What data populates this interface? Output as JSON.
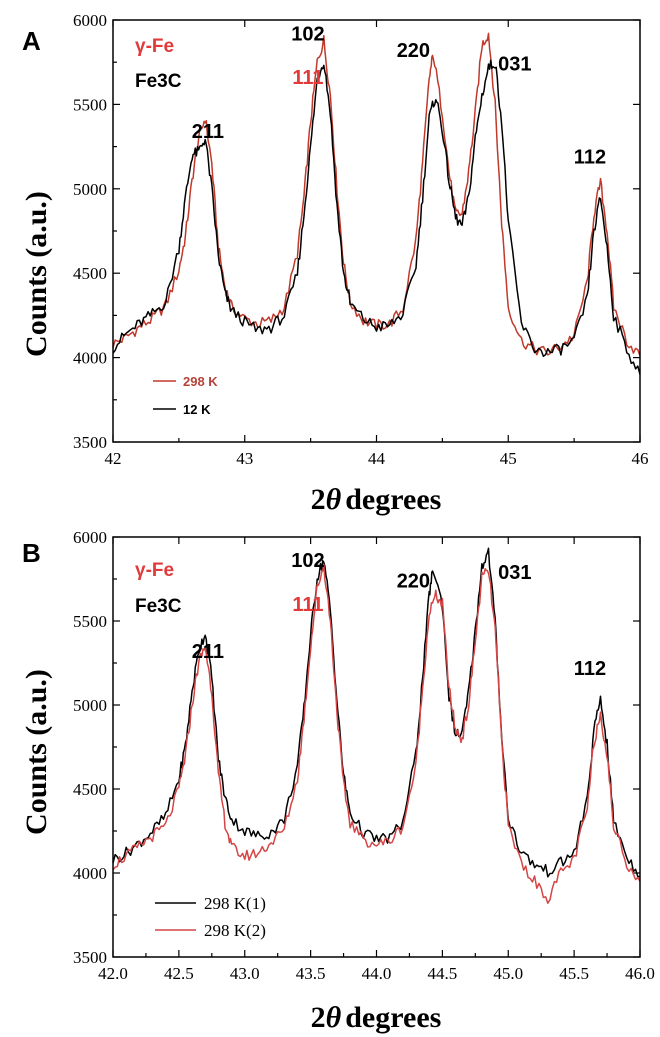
{
  "chart_data": [
    {
      "panel": "A",
      "type": "line",
      "xlabel_prefix": "2",
      "xlabel_symbol": "θ",
      "xlabel_suffix": "degrees",
      "ylabel": "Counts (a.u.)",
      "xlim": [
        42,
        46
      ],
      "ylim": [
        3500,
        6000
      ],
      "xticks": [
        42,
        43,
        44,
        45,
        46
      ],
      "xtick_labels": [
        "42",
        "43",
        "44",
        "45",
        "46"
      ],
      "yticks": [
        3500,
        4000,
        4500,
        5000,
        5500,
        6000
      ],
      "ytick_labels": [
        "3500",
        "4000",
        "4500",
        "5000",
        "5500",
        "6000"
      ],
      "grid": false,
      "legend_position": "lower-left",
      "phase_labels": [
        "γ-Fe",
        "Fe3C"
      ],
      "peak_labels": [
        {
          "text": "211",
          "x": 42.72,
          "y": 5300,
          "phase": "Fe3C"
        },
        {
          "text": "102",
          "x": 43.48,
          "y": 5880,
          "phase": "Fe3C"
        },
        {
          "text": "111",
          "x": 43.48,
          "y": 5620,
          "phase": "γ-Fe"
        },
        {
          "text": "220",
          "x": 44.28,
          "y": 5780,
          "phase": "Fe3C"
        },
        {
          "text": "031",
          "x": 45.05,
          "y": 5700,
          "phase": "Fe3C"
        },
        {
          "text": "112",
          "x": 45.62,
          "y": 5150,
          "phase": "Fe3C"
        }
      ],
      "series": [
        {
          "name": "298 K",
          "color": "#c0392b",
          "x": [
            42.0,
            42.1,
            42.2,
            42.3,
            42.4,
            42.5,
            42.55,
            42.6,
            42.65,
            42.7,
            42.75,
            42.8,
            42.85,
            42.9,
            43.0,
            43.1,
            43.2,
            43.3,
            43.4,
            43.45,
            43.5,
            43.55,
            43.6,
            43.65,
            43.7,
            43.75,
            43.8,
            43.9,
            44.0,
            44.1,
            44.2,
            44.3,
            44.35,
            44.4,
            44.43,
            44.5,
            44.55,
            44.6,
            44.65,
            44.7,
            44.75,
            44.8,
            44.85,
            44.9,
            44.95,
            45.0,
            45.1,
            45.2,
            45.3,
            45.4,
            45.5,
            45.6,
            45.65,
            45.7,
            45.75,
            45.8,
            45.9,
            46.0
          ],
          "y": [
            4080,
            4120,
            4180,
            4230,
            4310,
            4520,
            4720,
            5050,
            5300,
            5420,
            5150,
            4650,
            4420,
            4300,
            4230,
            4200,
            4220,
            4300,
            4620,
            4950,
            5400,
            5750,
            5880,
            5550,
            5000,
            4560,
            4330,
            4220,
            4190,
            4200,
            4290,
            4700,
            5150,
            5650,
            5800,
            5450,
            5100,
            4850,
            4850,
            5100,
            5450,
            5850,
            5920,
            5500,
            4800,
            4300,
            4100,
            4050,
            4030,
            4070,
            4130,
            4450,
            4850,
            5040,
            4750,
            4300,
            4100,
            4010
          ]
        },
        {
          "name": "12 K",
          "color": "#000000",
          "x": [
            42.0,
            42.1,
            42.2,
            42.3,
            42.4,
            42.5,
            42.55,
            42.6,
            42.65,
            42.7,
            42.75,
            42.8,
            42.85,
            42.9,
            43.0,
            43.1,
            43.2,
            43.3,
            43.4,
            43.45,
            43.5,
            43.55,
            43.6,
            43.65,
            43.7,
            43.75,
            43.8,
            43.9,
            44.0,
            44.1,
            44.2,
            44.3,
            44.35,
            44.4,
            44.45,
            44.5,
            44.55,
            44.6,
            44.65,
            44.7,
            44.75,
            44.8,
            44.85,
            44.9,
            44.95,
            45.0,
            45.1,
            45.2,
            45.3,
            45.4,
            45.5,
            45.6,
            45.65,
            45.7,
            45.75,
            45.8,
            45.9,
            46.0
          ],
          "y": [
            4060,
            4140,
            4200,
            4260,
            4330,
            4650,
            4950,
            5200,
            5220,
            5300,
            5000,
            4600,
            4380,
            4280,
            4210,
            4160,
            4180,
            4250,
            4500,
            4850,
            5250,
            5650,
            5760,
            5450,
            4900,
            4500,
            4320,
            4230,
            4180,
            4190,
            4260,
            4550,
            4950,
            5420,
            5550,
            5350,
            5050,
            4830,
            4780,
            4950,
            5300,
            5550,
            5720,
            5750,
            5400,
            4800,
            4200,
            4050,
            4030,
            4050,
            4100,
            4350,
            4750,
            4950,
            4650,
            4250,
            4050,
            3900
          ]
        }
      ]
    },
    {
      "panel": "B",
      "type": "line",
      "xlabel_prefix": "2",
      "xlabel_symbol": "θ",
      "xlabel_suffix": "degrees",
      "ylabel": "Counts (a.u.)",
      "xlim": [
        42.0,
        46.0
      ],
      "ylim": [
        3500,
        6000
      ],
      "xticks": [
        42.0,
        42.5,
        43.0,
        43.5,
        44.0,
        44.5,
        45.0,
        45.5,
        46.0
      ],
      "xtick_labels": [
        "42.0",
        "42.5",
        "43.0",
        "43.5",
        "44.0",
        "44.5",
        "45.0",
        "45.5",
        "46.0"
      ],
      "yticks": [
        3500,
        4000,
        4500,
        5000,
        5500,
        6000
      ],
      "ytick_labels": [
        "3500",
        "4000",
        "4500",
        "5000",
        "5500",
        "6000"
      ],
      "grid": false,
      "legend_position": "lower-left",
      "phase_labels": [
        "γ-Fe",
        "Fe3C"
      ],
      "peak_labels": [
        {
          "text": "211",
          "x": 42.72,
          "y": 5280,
          "phase": "Fe3C"
        },
        {
          "text": "102",
          "x": 43.48,
          "y": 5820,
          "phase": "Fe3C"
        },
        {
          "text": "111",
          "x": 43.48,
          "y": 5560,
          "phase": "γ-Fe"
        },
        {
          "text": "220",
          "x": 44.28,
          "y": 5700,
          "phase": "Fe3C"
        },
        {
          "text": "031",
          "x": 45.05,
          "y": 5750,
          "phase": "Fe3C"
        },
        {
          "text": "112",
          "x": 45.62,
          "y": 5180,
          "phase": "Fe3C"
        }
      ],
      "series": [
        {
          "name": "298 K(1)",
          "color": "#000000",
          "x": [
            42.0,
            42.1,
            42.2,
            42.3,
            42.4,
            42.5,
            42.55,
            42.6,
            42.65,
            42.7,
            42.75,
            42.8,
            42.85,
            42.9,
            43.0,
            43.1,
            43.2,
            43.3,
            43.4,
            43.45,
            43.5,
            43.55,
            43.6,
            43.65,
            43.7,
            43.75,
            43.8,
            43.9,
            44.0,
            44.1,
            44.2,
            44.3,
            44.35,
            44.4,
            44.43,
            44.5,
            44.55,
            44.6,
            44.65,
            44.7,
            44.75,
            44.8,
            44.85,
            44.9,
            44.95,
            45.0,
            45.1,
            45.2,
            45.3,
            45.4,
            45.5,
            45.6,
            45.65,
            45.7,
            45.75,
            45.8,
            45.9,
            46.0
          ],
          "y": [
            4080,
            4120,
            4180,
            4250,
            4340,
            4560,
            4760,
            5080,
            5320,
            5430,
            5160,
            4680,
            4450,
            4320,
            4250,
            4220,
            4240,
            4320,
            4640,
            4980,
            5420,
            5760,
            5870,
            5560,
            5020,
            4580,
            4360,
            4240,
            4200,
            4210,
            4300,
            4710,
            5160,
            5660,
            5810,
            5600,
            5050,
            4820,
            4830,
            5080,
            5440,
            5830,
            5910,
            5500,
            4820,
            4330,
            4120,
            4050,
            4010,
            4060,
            4120,
            4440,
            4840,
            5040,
            4760,
            4310,
            4100,
            3980
          ]
        },
        {
          "name": "298 K(2)",
          "color": "#d64545",
          "x": [
            42.0,
            42.1,
            42.2,
            42.3,
            42.4,
            42.5,
            42.55,
            42.6,
            42.65,
            42.7,
            42.75,
            42.8,
            42.85,
            42.9,
            43.0,
            43.1,
            43.2,
            43.3,
            43.4,
            43.45,
            43.5,
            43.55,
            43.6,
            43.65,
            43.7,
            43.75,
            43.8,
            43.9,
            44.0,
            44.1,
            44.2,
            44.3,
            44.35,
            44.4,
            44.45,
            44.5,
            44.55,
            44.6,
            44.65,
            44.7,
            44.75,
            44.8,
            44.85,
            44.9,
            44.95,
            45.0,
            45.1,
            45.2,
            45.3,
            45.4,
            45.5,
            45.6,
            45.65,
            45.7,
            45.75,
            45.8,
            45.9,
            46.0
          ],
          "y": [
            4050,
            4100,
            4160,
            4220,
            4280,
            4500,
            4700,
            5000,
            5250,
            5350,
            5080,
            4580,
            4300,
            4150,
            4100,
            4120,
            4180,
            4260,
            4560,
            4920,
            5350,
            5700,
            5830,
            5500,
            4960,
            4520,
            4300,
            4200,
            4170,
            4190,
            4280,
            4640,
            5100,
            5550,
            5650,
            5600,
            5100,
            4850,
            4800,
            5000,
            5380,
            5760,
            5800,
            5450,
            4780,
            4280,
            4060,
            3950,
            3850,
            4000,
            4080,
            4380,
            4780,
            4950,
            4700,
            4280,
            4060,
            3950
          ]
        }
      ]
    }
  ]
}
